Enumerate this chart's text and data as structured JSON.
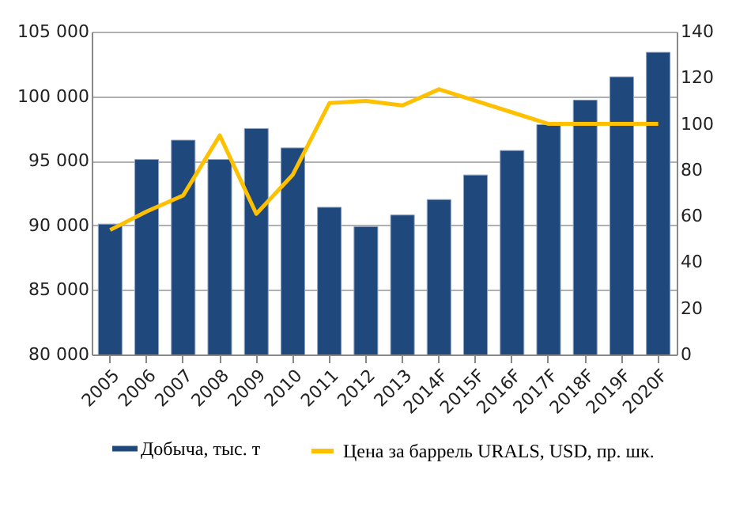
{
  "chart_data": {
    "type": "bar",
    "categories": [
      "2005",
      "2006",
      "2007",
      "2008",
      "2009",
      "2010",
      "2011",
      "2012",
      "2013",
      "2014F",
      "2015F",
      "2016F",
      "2017F",
      "2018F",
      "2019F",
      "2020F"
    ],
    "series": [
      {
        "name": "Добыча, тыс. т",
        "type": "bar",
        "color": "#1f497d",
        "values": [
          90100,
          95100,
          96600,
          95100,
          97500,
          96000,
          91400,
          89900,
          90800,
          92000,
          93900,
          95800,
          97800,
          99700,
          101500,
          103400
        ]
      },
      {
        "name": "Цена за баррель URALS, USD, пр. шк.",
        "type": "line",
        "axis": "y2",
        "color": "#ffc000",
        "values": [
          54,
          62,
          69,
          95,
          61,
          78,
          109,
          110,
          108,
          115,
          110,
          105,
          100,
          100,
          100,
          100
        ]
      }
    ],
    "ylim": [
      80000,
      105000
    ],
    "yticks": [
      {
        "value": 80000,
        "label": "80 000"
      },
      {
        "value": 85000,
        "label": "85 000"
      },
      {
        "value": 90000,
        "label": "90 000"
      },
      {
        "value": 95000,
        "label": "95 000"
      },
      {
        "value": 100000,
        "label": "100 000"
      },
      {
        "value": 105000,
        "label": "105 000"
      }
    ],
    "y2lim": [
      0,
      140
    ],
    "y2ticks": [
      0,
      20,
      40,
      60,
      80,
      100,
      120,
      140
    ],
    "grid": "y",
    "legend": "bottom"
  }
}
